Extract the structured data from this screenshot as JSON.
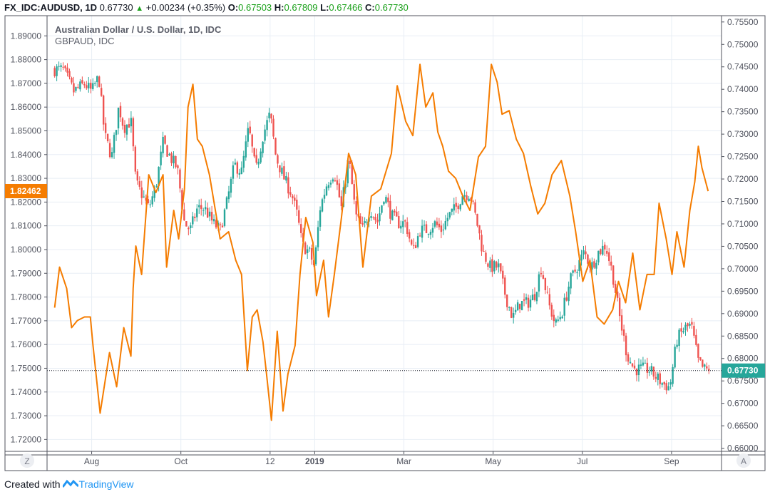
{
  "header": {
    "symbol": "FX_IDC:AUDUSD, 1D",
    "last": "0.67730",
    "change": "+0.00234 (+0.35%)",
    "o_label": "O:",
    "o": "0.67503",
    "h_label": "H:",
    "h": "0.67809",
    "l_label": "L:",
    "l": "0.67466",
    "c_label": "C:",
    "c": "0.67730"
  },
  "legend": {
    "main": "Australian Dollar / U.S. Dollar, 1D, IDC",
    "compare": "GBPAUD, IDC"
  },
  "footer": {
    "created_with": "Created with",
    "brand": "TradingView"
  },
  "buttons": {
    "zoom": "Z",
    "auto": "A"
  },
  "colors": {
    "up": "#26a69a",
    "down": "#ef5350",
    "compare": "#f57c00",
    "grid": "#e8eef5"
  },
  "chart_data": {
    "type": "candlestick+line",
    "time_unit": "months since 2018-07-01",
    "x_ticks": [
      {
        "t": 1,
        "label": "Aug"
      },
      {
        "t": 3,
        "label": "Oct"
      },
      {
        "t": 5,
        "label": "12"
      },
      {
        "t": 6,
        "label": "2019"
      },
      {
        "t": 8,
        "label": "Mar"
      },
      {
        "t": 10,
        "label": "May"
      },
      {
        "t": 12,
        "label": "Jul"
      },
      {
        "t": 14,
        "label": "Sep"
      }
    ],
    "xlim": [
      0,
      15.12
    ],
    "left_axis": {
      "series": "GBPAUD",
      "ylim": [
        1.715,
        1.8985
      ],
      "ticks": [
        "1.89000",
        "1.88000",
        "1.87000",
        "1.86000",
        "1.85000",
        "1.84000",
        "1.83000",
        "1.82000",
        "1.81000",
        "1.80000",
        "1.79000",
        "1.78000",
        "1.77000",
        "1.76000",
        "1.75000",
        "1.74000",
        "1.73000",
        "1.72000"
      ],
      "last_label": "1.82462"
    },
    "right_axis": {
      "series": "AUDUSD",
      "ylim": [
        0.6593,
        0.7564
      ],
      "ticks": [
        "0.75500",
        "0.75000",
        "0.74500",
        "0.74000",
        "0.73500",
        "0.73000",
        "0.72500",
        "0.72000",
        "0.71500",
        "0.71000",
        "0.70500",
        "0.70000",
        "0.69500",
        "0.69000",
        "0.68500",
        "0.68000",
        "0.67500",
        "0.67000",
        "0.66500",
        "0.66000"
      ],
      "last_label": "0.67730",
      "last_value": 0.6773
    },
    "series": [
      {
        "name": "GBPAUD",
        "type": "line",
        "points": [
          [
            0.17,
            1.7755
          ],
          [
            0.28,
            1.7926
          ],
          [
            0.44,
            1.7836
          ],
          [
            0.55,
            1.7671
          ],
          [
            0.68,
            1.7701
          ],
          [
            0.84,
            1.7716
          ],
          [
            0.97,
            1.7716
          ],
          [
            1.03,
            1.7596
          ],
          [
            1.19,
            1.7311
          ],
          [
            1.4,
            1.7566
          ],
          [
            1.56,
            1.7422
          ],
          [
            1.72,
            1.7671
          ],
          [
            1.88,
            1.7551
          ],
          [
            1.93,
            1.7836
          ],
          [
            1.99,
            1.8015
          ],
          [
            2.12,
            1.7895
          ],
          [
            2.28,
            1.8315
          ],
          [
            2.44,
            1.824
          ],
          [
            2.6,
            1.8315
          ],
          [
            2.68,
            1.7926
          ],
          [
            2.84,
            1.8165
          ],
          [
            2.95,
            1.8045
          ],
          [
            3.08,
            1.8255
          ],
          [
            3.16,
            1.86
          ],
          [
            3.27,
            1.8696
          ],
          [
            3.37,
            1.8465
          ],
          [
            3.48,
            1.8435
          ],
          [
            3.64,
            1.8315
          ],
          [
            3.88,
            1.8045
          ],
          [
            4.07,
            1.8075
          ],
          [
            4.23,
            1.7955
          ],
          [
            4.36,
            1.7895
          ],
          [
            4.49,
            1.7491
          ],
          [
            4.6,
            1.7716
          ],
          [
            4.71,
            1.7746
          ],
          [
            4.84,
            1.7611
          ],
          [
            4.92,
            1.7476
          ],
          [
            5.03,
            1.7281
          ],
          [
            5.16,
            1.7656
          ],
          [
            5.29,
            1.732
          ],
          [
            5.4,
            1.7476
          ],
          [
            5.56,
            1.7596
          ],
          [
            5.67,
            1.7895
          ],
          [
            5.8,
            1.8135
          ],
          [
            5.96,
            1.803
          ],
          [
            6.04,
            1.7806
          ],
          [
            6.2,
            1.7955
          ],
          [
            6.31,
            1.7716
          ],
          [
            6.44,
            1.7895
          ],
          [
            6.6,
            1.8135
          ],
          [
            6.76,
            1.8405
          ],
          [
            6.92,
            1.8315
          ],
          [
            7.08,
            1.7926
          ],
          [
            7.27,
            1.8225
          ],
          [
            7.48,
            1.8255
          ],
          [
            7.72,
            1.8405
          ],
          [
            7.85,
            1.869
          ],
          [
            7.91,
            1.8645
          ],
          [
            8.04,
            1.854
          ],
          [
            8.2,
            1.848
          ],
          [
            8.36,
            1.878
          ],
          [
            8.49,
            1.86
          ],
          [
            8.65,
            1.866
          ],
          [
            8.76,
            1.8495
          ],
          [
            8.87,
            1.8435
          ],
          [
            9.0,
            1.833
          ],
          [
            9.16,
            1.83
          ],
          [
            9.32,
            1.8225
          ],
          [
            9.48,
            1.8165
          ],
          [
            9.67,
            1.839
          ],
          [
            9.83,
            1.8435
          ],
          [
            9.96,
            1.878
          ],
          [
            10.09,
            1.8705
          ],
          [
            10.2,
            1.857
          ],
          [
            10.36,
            1.8585
          ],
          [
            10.52,
            1.8465
          ],
          [
            10.68,
            1.8405
          ],
          [
            10.84,
            1.827
          ],
          [
            11.0,
            1.815
          ],
          [
            11.16,
            1.8195
          ],
          [
            11.32,
            1.8315
          ],
          [
            11.53,
            1.8375
          ],
          [
            11.72,
            1.8225
          ],
          [
            11.85,
            1.8075
          ],
          [
            12.01,
            1.7866
          ],
          [
            12.17,
            1.7955
          ],
          [
            12.33,
            1.7716
          ],
          [
            12.49,
            1.7686
          ],
          [
            12.68,
            1.7746
          ],
          [
            12.81,
            1.7866
          ],
          [
            12.97,
            1.7776
          ],
          [
            13.13,
            1.7985
          ],
          [
            13.29,
            1.7746
          ],
          [
            13.45,
            1.7895
          ],
          [
            13.61,
            1.7895
          ],
          [
            13.72,
            1.8195
          ],
          [
            13.88,
            1.8045
          ],
          [
            14.01,
            1.7895
          ],
          [
            14.12,
            1.8075
          ],
          [
            14.28,
            1.7926
          ],
          [
            14.41,
            1.8165
          ],
          [
            14.52,
            1.8285
          ],
          [
            14.6,
            1.8435
          ],
          [
            14.68,
            1.8345
          ],
          [
            14.82,
            1.8246
          ]
        ]
      },
      {
        "name": "AUDUSD",
        "type": "candlestick",
        "closes": [
          [
            0.17,
            0.7444
          ],
          [
            0.36,
            0.7444
          ],
          [
            0.6,
            0.7395
          ],
          [
            0.84,
            0.7412
          ],
          [
            1.0,
            0.7395
          ],
          [
            1.16,
            0.7428
          ],
          [
            1.29,
            0.7298
          ],
          [
            1.45,
            0.7249
          ],
          [
            1.61,
            0.7363
          ],
          [
            1.72,
            0.7314
          ],
          [
            1.88,
            0.733
          ],
          [
            1.99,
            0.7192
          ],
          [
            2.12,
            0.7167
          ],
          [
            2.28,
            0.7135
          ],
          [
            2.44,
            0.7184
          ],
          [
            2.6,
            0.7281
          ],
          [
            2.76,
            0.7249
          ],
          [
            2.92,
            0.7224
          ],
          [
            3.08,
            0.7102
          ],
          [
            3.21,
            0.7086
          ],
          [
            3.37,
            0.7135
          ],
          [
            3.53,
            0.7135
          ],
          [
            3.72,
            0.7102
          ],
          [
            3.88,
            0.7086
          ],
          [
            4.04,
            0.7151
          ],
          [
            4.2,
            0.7232
          ],
          [
            4.36,
            0.7216
          ],
          [
            4.52,
            0.7314
          ],
          [
            4.68,
            0.7216
          ],
          [
            4.84,
            0.7298
          ],
          [
            5.0,
            0.7346
          ],
          [
            5.13,
            0.7249
          ],
          [
            5.32,
            0.72
          ],
          [
            5.48,
            0.7167
          ],
          [
            5.61,
            0.7118
          ],
          [
            5.72,
            0.7053
          ],
          [
            5.88,
            0.7037
          ],
          [
            5.99,
            0.7004
          ],
          [
            6.12,
            0.7135
          ],
          [
            6.28,
            0.7192
          ],
          [
            6.44,
            0.7216
          ],
          [
            6.6,
            0.7135
          ],
          [
            6.76,
            0.7249
          ],
          [
            6.92,
            0.7118
          ],
          [
            7.08,
            0.7086
          ],
          [
            7.24,
            0.7135
          ],
          [
            7.4,
            0.7102
          ],
          [
            7.56,
            0.7167
          ],
          [
            7.72,
            0.7118
          ],
          [
            7.88,
            0.7102
          ],
          [
            8.04,
            0.7102
          ],
          [
            8.2,
            0.7037
          ],
          [
            8.36,
            0.7086
          ],
          [
            8.52,
            0.7086
          ],
          [
            8.68,
            0.7102
          ],
          [
            8.84,
            0.7086
          ],
          [
            9.0,
            0.7118
          ],
          [
            9.16,
            0.7135
          ],
          [
            9.32,
            0.7167
          ],
          [
            9.48,
            0.7167
          ],
          [
            9.64,
            0.7102
          ],
          [
            9.77,
            0.7037
          ],
          [
            9.93,
            0.7004
          ],
          [
            10.12,
            0.7004
          ],
          [
            10.28,
            0.6939
          ],
          [
            10.44,
            0.689
          ],
          [
            10.6,
            0.6923
          ],
          [
            10.76,
            0.6923
          ],
          [
            10.92,
            0.6939
          ],
          [
            11.08,
            0.7004
          ],
          [
            11.24,
            0.6923
          ],
          [
            11.4,
            0.6874
          ],
          [
            11.56,
            0.6907
          ],
          [
            11.72,
            0.6972
          ],
          [
            11.88,
            0.7004
          ],
          [
            12.04,
            0.7037
          ],
          [
            12.2,
            0.7004
          ],
          [
            12.36,
            0.7037
          ],
          [
            12.52,
            0.7053
          ],
          [
            12.68,
            0.6988
          ],
          [
            12.84,
            0.689
          ],
          [
            13.0,
            0.6809
          ],
          [
            13.16,
            0.6776
          ],
          [
            13.32,
            0.6776
          ],
          [
            13.48,
            0.6776
          ],
          [
            13.64,
            0.676
          ],
          [
            13.8,
            0.6744
          ],
          [
            13.96,
            0.6736
          ],
          [
            14.12,
            0.6842
          ],
          [
            14.28,
            0.6866
          ],
          [
            14.44,
            0.6874
          ],
          [
            14.6,
            0.6793
          ],
          [
            14.72,
            0.6776
          ],
          [
            14.82,
            0.6773
          ]
        ]
      }
    ]
  }
}
